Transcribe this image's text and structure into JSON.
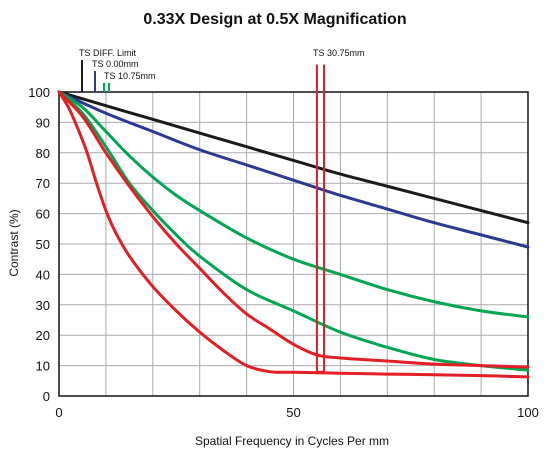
{
  "chart_data": {
    "type": "line",
    "title": "0.33X Design at 0.5X Magnification",
    "xlabel": "Spatial Frequency in Cycles Per mm",
    "ylabel": "Contrast (%)",
    "xlim": [
      0,
      100
    ],
    "ylim": [
      0,
      100
    ],
    "x_ticks": [
      0,
      50,
      100
    ],
    "y_ticks": [
      0,
      10,
      20,
      30,
      40,
      50,
      60,
      70,
      80,
      90,
      100
    ],
    "grid": true,
    "legend_markers": [
      {
        "label": "TS DIFF. Limit",
        "color": "#1a1a1a",
        "lines": 1
      },
      {
        "label": "TS 0.00mm",
        "color": "#2b3990",
        "lines": 1
      },
      {
        "label": "TS 10.75mm",
        "color": "#00a651",
        "lines": 2
      },
      {
        "label": "TS 30.75mm",
        "color": "#e31e24",
        "lines": 2
      }
    ],
    "series": [
      {
        "color": "#1a1a1a",
        "x": [
          0,
          10,
          20,
          30,
          40,
          50,
          60,
          70,
          80,
          90,
          100
        ],
        "y": [
          100,
          95.5,
          91,
          86.5,
          82,
          77.5,
          73,
          69,
          65,
          61,
          57
        ]
      },
      {
        "color": "#2b3990",
        "x": [
          0,
          10,
          20,
          30,
          40,
          50,
          60,
          70,
          80,
          90,
          100
        ],
        "y": [
          100,
          93,
          87,
          81,
          76,
          71,
          66,
          61.5,
          57,
          53,
          49
        ]
      },
      {
        "color": "#00a651",
        "x": [
          0,
          5,
          10,
          15,
          20,
          25,
          30,
          40,
          50,
          60,
          70,
          80,
          90,
          100
        ],
        "y": [
          100,
          95,
          87,
          79,
          72,
          66,
          61,
          52,
          45,
          40,
          35,
          31,
          28,
          26
        ]
      },
      {
        "color": "#00a651",
        "x": [
          0,
          5,
          10,
          15,
          20,
          25,
          30,
          40,
          50,
          60,
          70,
          80,
          90,
          100
        ],
        "y": [
          100,
          93,
          82,
          70,
          61,
          53,
          46,
          35,
          28,
          21,
          16,
          12,
          10,
          8.5
        ]
      },
      {
        "color": "#e31e24",
        "x": [
          0,
          5,
          10,
          15,
          20,
          25,
          30,
          35,
          40,
          45,
          50,
          55,
          60,
          70,
          80,
          90,
          100
        ],
        "y": [
          100,
          92,
          80,
          69,
          59,
          50,
          42,
          34,
          27,
          22,
          17,
          13.5,
          12.5,
          11.5,
          10.5,
          10,
          9.5
        ]
      },
      {
        "color": "#e31e24",
        "x": [
          0,
          2,
          4,
          6,
          8,
          10,
          12,
          15,
          20,
          25,
          30,
          35,
          40,
          45,
          50,
          60,
          70,
          80,
          90,
          100
        ],
        "y": [
          100,
          95,
          88,
          80,
          70,
          61,
          54,
          46,
          36,
          28,
          21,
          15,
          10,
          8,
          7.8,
          7.5,
          7.2,
          7,
          6.7,
          6.3
        ]
      }
    ],
    "markers": [
      {
        "x": 55,
        "y_top": 109,
        "y_bottom": 8,
        "color": "#e31e24"
      },
      {
        "x": 56.5,
        "y_top": 109,
        "y_bottom": 8,
        "color": "#e31e24"
      }
    ]
  }
}
